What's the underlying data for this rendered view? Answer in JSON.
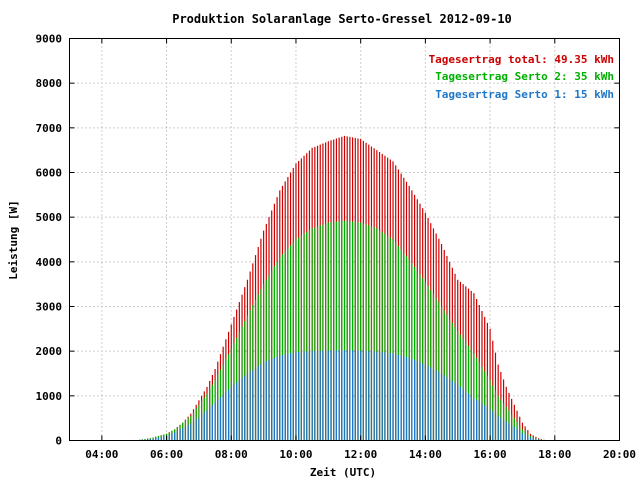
{
  "chart_data": {
    "type": "bar",
    "title": "Produktion Solaranlage Serto-Gressel 2012-09-10",
    "xlabel": "Zeit (UTC)",
    "ylabel": "Leistung [W]",
    "xlim": [
      "03:00",
      "20:00"
    ],
    "ylim": [
      0,
      9000
    ],
    "x_ticks": [
      "04:00",
      "06:00",
      "08:00",
      "10:00",
      "12:00",
      "14:00",
      "16:00",
      "18:00",
      "20:00"
    ],
    "y_ticks": [
      "0",
      "1000",
      "2000",
      "3000",
      "4000",
      "5000",
      "6000",
      "7000",
      "8000",
      "9000"
    ],
    "grid": true,
    "legend_position": "top-right",
    "legend": [
      {
        "label": "Tagesertrag total: 49.35 kWh",
        "color": "#cc0000"
      },
      {
        "label": "Tagesertrag Serto 2: 35 kWh",
        "color": "#00b000"
      },
      {
        "label": "Tagesertrag Serto 1: 15 kWh",
        "color": "#1f77c8"
      }
    ],
    "series": [
      {
        "name": "total",
        "color": "#cc0000",
        "points": [
          [
            "05:00",
            0
          ],
          [
            "05:30",
            50
          ],
          [
            "06:00",
            150
          ],
          [
            "06:15",
            250
          ],
          [
            "06:30",
            400
          ],
          [
            "06:45",
            600
          ],
          [
            "07:00",
            900
          ],
          [
            "07:15",
            1200
          ],
          [
            "07:30",
            1600
          ],
          [
            "07:45",
            2100
          ],
          [
            "08:00",
            2600
          ],
          [
            "08:30",
            3600
          ],
          [
            "09:00",
            4700
          ],
          [
            "09:30",
            5600
          ],
          [
            "10:00",
            6200
          ],
          [
            "10:30",
            6550
          ],
          [
            "11:00",
            6700
          ],
          [
            "11:30",
            6820
          ],
          [
            "12:00",
            6750
          ],
          [
            "12:30",
            6500
          ],
          [
            "13:00",
            6250
          ],
          [
            "13:30",
            5700
          ],
          [
            "14:00",
            5100
          ],
          [
            "14:30",
            4400
          ],
          [
            "15:00",
            3600
          ],
          [
            "15:30",
            3300
          ],
          [
            "16:00",
            2500
          ],
          [
            "16:15",
            1700
          ],
          [
            "16:30",
            1200
          ],
          [
            "16:45",
            800
          ],
          [
            "17:00",
            400
          ],
          [
            "17:15",
            150
          ],
          [
            "17:30",
            50
          ],
          [
            "17:45",
            0
          ]
        ]
      },
      {
        "name": "Serto 2",
        "color": "#00b000",
        "points": [
          [
            "05:00",
            0
          ],
          [
            "05:30",
            50
          ],
          [
            "06:00",
            150
          ],
          [
            "06:15",
            250
          ],
          [
            "06:30",
            400
          ],
          [
            "06:45",
            550
          ],
          [
            "07:00",
            800
          ],
          [
            "07:15",
            1050
          ],
          [
            "07:30",
            1350
          ],
          [
            "07:45",
            1700
          ],
          [
            "08:00",
            2050
          ],
          [
            "08:30",
            2800
          ],
          [
            "09:00",
            3500
          ],
          [
            "09:30",
            4100
          ],
          [
            "10:00",
            4500
          ],
          [
            "10:30",
            4750
          ],
          [
            "11:00",
            4880
          ],
          [
            "11:30",
            4920
          ],
          [
            "12:00",
            4880
          ],
          [
            "12:30",
            4750
          ],
          [
            "13:00",
            4500
          ],
          [
            "13:30",
            4050
          ],
          [
            "14:00",
            3550
          ],
          [
            "14:30",
            3000
          ],
          [
            "15:00",
            2450
          ],
          [
            "15:30",
            1950
          ],
          [
            "16:00",
            1350
          ],
          [
            "16:15",
            1000
          ],
          [
            "16:30",
            750
          ],
          [
            "16:45",
            500
          ],
          [
            "17:00",
            250
          ],
          [
            "17:15",
            100
          ],
          [
            "17:30",
            30
          ],
          [
            "17:45",
            0
          ]
        ]
      },
      {
        "name": "Serto 1",
        "color": "#1f77c8",
        "points": [
          [
            "05:00",
            0
          ],
          [
            "05:30",
            30
          ],
          [
            "06:00",
            100
          ],
          [
            "06:15",
            180
          ],
          [
            "06:30",
            280
          ],
          [
            "06:45",
            380
          ],
          [
            "07:00",
            520
          ],
          [
            "07:15",
            680
          ],
          [
            "07:30",
            850
          ],
          [
            "07:45",
            1020
          ],
          [
            "08:00",
            1200
          ],
          [
            "08:30",
            1500
          ],
          [
            "09:00",
            1750
          ],
          [
            "09:30",
            1900
          ],
          [
            "10:00",
            1980
          ],
          [
            "10:30",
            2000
          ],
          [
            "11:00",
            2010
          ],
          [
            "11:30",
            2020
          ],
          [
            "12:00",
            2010
          ],
          [
            "12:30",
            1990
          ],
          [
            "13:00",
            1950
          ],
          [
            "13:30",
            1850
          ],
          [
            "14:00",
            1700
          ],
          [
            "14:30",
            1500
          ],
          [
            "15:00",
            1250
          ],
          [
            "15:30",
            950
          ],
          [
            "16:00",
            700
          ],
          [
            "16:15",
            550
          ],
          [
            "16:30",
            420
          ],
          [
            "16:45",
            300
          ],
          [
            "17:00",
            170
          ],
          [
            "17:15",
            70
          ],
          [
            "17:30",
            20
          ],
          [
            "17:45",
            0
          ]
        ]
      }
    ]
  }
}
